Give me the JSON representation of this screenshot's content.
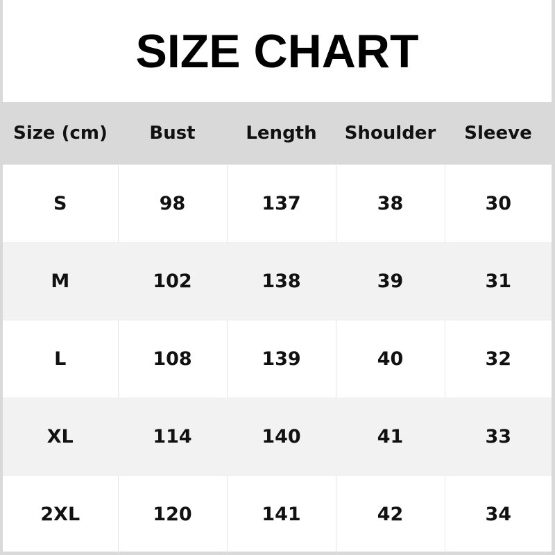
{
  "title": "SIZE CHART",
  "headers": [
    "Size (cm)",
    "Bust",
    "Length",
    "Shoulder",
    "Sleeve"
  ],
  "rows": [
    [
      "S",
      "98",
      "137",
      "38",
      "30"
    ],
    [
      "M",
      "102",
      "138",
      "39",
      "31"
    ],
    [
      "L",
      "108",
      "139",
      "40",
      "32"
    ],
    [
      "XL",
      "114",
      "140",
      "41",
      "33"
    ],
    [
      "2XL",
      "120",
      "141",
      "42",
      "34"
    ]
  ]
}
